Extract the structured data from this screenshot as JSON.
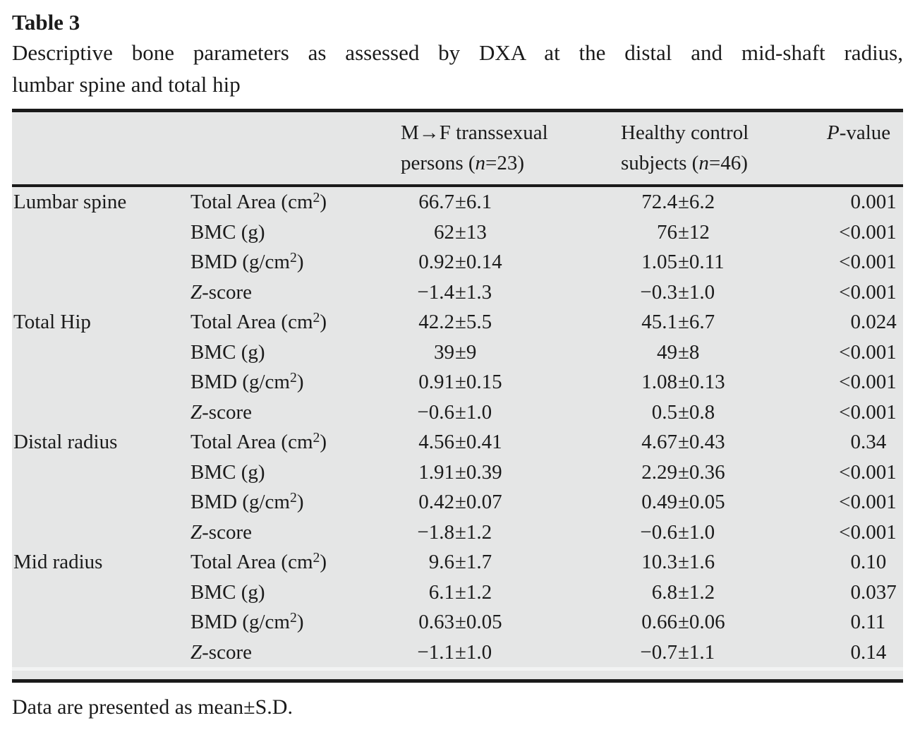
{
  "table_label": "Table 3",
  "caption_line1": "Descriptive bone parameters as assessed by DXA at the distal and mid-shaft radius,",
  "caption_line2": "lumbar spine and total hip",
  "header": {
    "col3_line1": "M→F transsexual",
    "col3_line2_pre": "persons (",
    "col3_n": "n",
    "col3_line2_post": "=23)",
    "col4_line1": "Healthy control",
    "col4_line2_pre": "subjects (",
    "col4_n": "n",
    "col4_line2_post": "=46)",
    "col5_italic": "P",
    "col5_rest": "-value"
  },
  "rows": [
    {
      "group": "Lumbar spine",
      "it": "",
      "a": "Total Area (cm",
      "sup": "2",
      "b": ")",
      "v1a": "66.7",
      "v1b": "±6.1",
      "v2a": "72.4",
      "v2b": "±6.2",
      "pa": "0",
      "pb": ".001"
    },
    {
      "group": "",
      "it": "",
      "a": "BMC (g)",
      "sup": "",
      "b": "",
      "v1a": "62",
      "v1b": "±13",
      "v2a": "76",
      "v2b": "±12",
      "pa": "<0",
      "pb": ".001"
    },
    {
      "group": "",
      "it": "",
      "a": "BMD (g/cm",
      "sup": "2",
      "b": ")",
      "v1a": "0.92",
      "v1b": "±0.14",
      "v2a": "1.05",
      "v2b": "±0.11",
      "pa": "<0",
      "pb": ".001"
    },
    {
      "group": "",
      "it": "Z",
      "a": "-score",
      "sup": "",
      "b": "",
      "v1a": "−1.4",
      "v1b": "±1.3",
      "v2a": "−0.3",
      "v2b": "±1.0",
      "pa": "<0",
      "pb": ".001"
    },
    {
      "group": "Total Hip",
      "it": "",
      "a": "Total Area (cm",
      "sup": "2",
      "b": ")",
      "v1a": "42.2",
      "v1b": "±5.5",
      "v2a": "45.1",
      "v2b": "±6.7",
      "pa": "0",
      "pb": ".024"
    },
    {
      "group": "",
      "it": "",
      "a": "BMC (g)",
      "sup": "",
      "b": "",
      "v1a": "39",
      "v1b": "±9",
      "v2a": "49",
      "v2b": "±8",
      "pa": "<0",
      "pb": ".001"
    },
    {
      "group": "",
      "it": "",
      "a": "BMD (g/cm",
      "sup": "2",
      "b": ")",
      "v1a": "0.91",
      "v1b": "±0.15",
      "v2a": "1.08",
      "v2b": "±0.13",
      "pa": "<0",
      "pb": ".001"
    },
    {
      "group": "",
      "it": "Z",
      "a": "-score",
      "sup": "",
      "b": "",
      "v1a": "−0.6",
      "v1b": "±1.0",
      "v2a": "0.5",
      "v2b": "±0.8",
      "pa": "<0",
      "pb": ".001"
    },
    {
      "group": "Distal radius",
      "it": "",
      "a": "Total Area (cm",
      "sup": "2",
      "b": ")",
      "v1a": "4.56",
      "v1b": "±0.41",
      "v2a": "4.67",
      "v2b": "±0.43",
      "pa": "0",
      "pb": ".34"
    },
    {
      "group": "",
      "it": "",
      "a": "BMC (g)",
      "sup": "",
      "b": "",
      "v1a": "1.91",
      "v1b": "±0.39",
      "v2a": "2.29",
      "v2b": "±0.36",
      "pa": "<0",
      "pb": ".001"
    },
    {
      "group": "",
      "it": "",
      "a": "BMD (g/cm",
      "sup": "2",
      "b": ")",
      "v1a": "0.42",
      "v1b": "±0.07",
      "v2a": "0.49",
      "v2b": "±0.05",
      "pa": "<0",
      "pb": ".001"
    },
    {
      "group": "",
      "it": "Z",
      "a": "-score",
      "sup": "",
      "b": "",
      "v1a": "−1.8",
      "v1b": "±1.2",
      "v2a": "−0.6",
      "v2b": "±1.0",
      "pa": "<0",
      "pb": ".001"
    },
    {
      "group": "Mid radius",
      "it": "",
      "a": "Total Area (cm",
      "sup": "2",
      "b": ")",
      "v1a": "9.6",
      "v1b": "±1.7",
      "v2a": "10.3",
      "v2b": "±1.6",
      "pa": "0",
      "pb": ".10"
    },
    {
      "group": "",
      "it": "",
      "a": "BMC (g)",
      "sup": "",
      "b": "",
      "v1a": "6.1",
      "v1b": "±1.2",
      "v2a": "6.8",
      "v2b": "±1.2",
      "pa": "0",
      "pb": ".037"
    },
    {
      "group": "",
      "it": "",
      "a": "BMD (g/cm",
      "sup": "2",
      "b": ")",
      "v1a": "0.63",
      "v1b": "±0.05",
      "v2a": "0.66",
      "v2b": "±0.06",
      "pa": "0",
      "pb": ".11"
    },
    {
      "group": "",
      "it": "Z",
      "a": "-score",
      "sup": "",
      "b": "",
      "v1a": "−1.1",
      "v1b": "±1.0",
      "v2a": "−0.7",
      "v2b": "±1.1",
      "pa": "0",
      "pb": ".14"
    }
  ],
  "footnote": "Data are presented as mean±S.D."
}
